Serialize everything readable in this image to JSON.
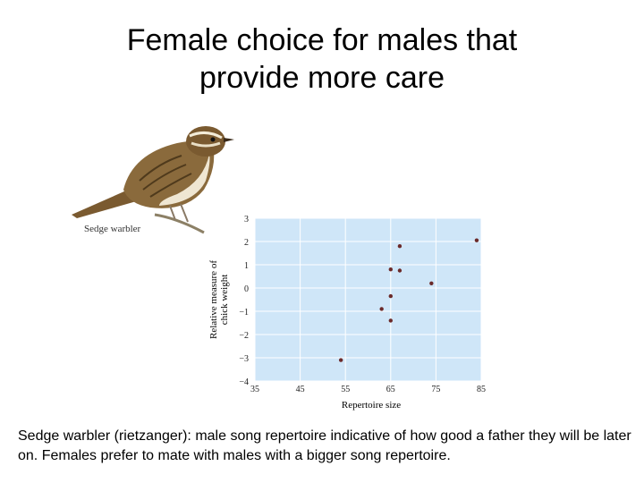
{
  "title": {
    "line1": "Female choice for males that",
    "line2": "provide more care"
  },
  "bird_label": "Sedge warbler",
  "caption": "Sedge warbler (rietzanger): male song repertoire indicative of how good a father they will be later on. Females prefer to mate with males with a bigger song repertoire.",
  "colors": {
    "plot_background": "#cfe6f8",
    "grid": "#ffffff",
    "point": "#6b2a2a",
    "bird_body": "#8a6a3c",
    "bird_belly": "#efe6d2"
  },
  "chart_data": {
    "type": "scatter",
    "title": "",
    "xlabel": "Repertoire size",
    "ylabel": "Relative measure of chick weight",
    "xlim": [
      35,
      85
    ],
    "ylim": [
      -4,
      3
    ],
    "xticks": [
      35,
      45,
      55,
      65,
      75,
      85
    ],
    "yticks": [
      3,
      2,
      1,
      0,
      -1,
      -2,
      -3,
      -4
    ],
    "ytick_labels": [
      "3",
      "2",
      "1",
      "0",
      "−1",
      "−2",
      "−3",
      "−4"
    ],
    "grid": true,
    "points": [
      {
        "x": 54,
        "y": -3.1
      },
      {
        "x": 63,
        "y": -0.9
      },
      {
        "x": 65,
        "y": -1.4
      },
      {
        "x": 65,
        "y": -0.35
      },
      {
        "x": 65,
        "y": 0.8
      },
      {
        "x": 67,
        "y": 1.8
      },
      {
        "x": 67,
        "y": 0.75
      },
      {
        "x": 74,
        "y": 0.2
      },
      {
        "x": 84,
        "y": 2.05
      }
    ]
  }
}
